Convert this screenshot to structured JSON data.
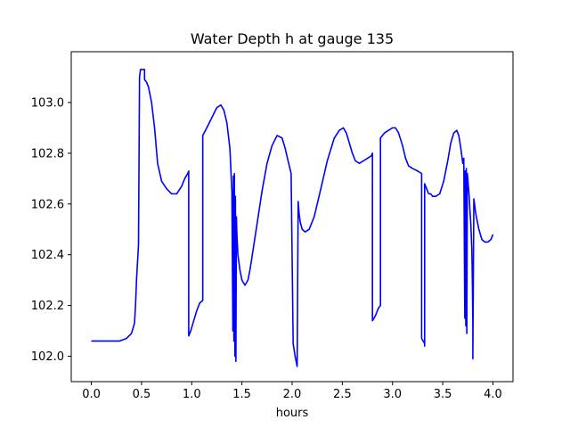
{
  "chart_data": {
    "type": "line",
    "title": "Water Depth h at gauge 135",
    "xlabel": "hours",
    "ylabel": "",
    "xlim": [
      -0.2,
      4.2
    ],
    "ylim": [
      101.9,
      103.2
    ],
    "xticks": [
      0.0,
      0.5,
      1.0,
      1.5,
      2.0,
      2.5,
      3.0,
      3.5,
      4.0
    ],
    "xtick_labels": [
      "0.0",
      "0.5",
      "1.0",
      "1.5",
      "2.0",
      "2.5",
      "3.0",
      "3.5",
      "4.0"
    ],
    "yticks": [
      102.0,
      102.2,
      102.4,
      102.6,
      102.8,
      103.0
    ],
    "ytick_labels": [
      "102.0",
      "102.2",
      "102.4",
      "102.6",
      "102.8",
      "103.0"
    ],
    "grid": false,
    "legend": "none",
    "series": [
      {
        "color": "#0000ff",
        "x": [
          0.0,
          0.1,
          0.2,
          0.28,
          0.35,
          0.4,
          0.43,
          0.44,
          0.45,
          0.47,
          0.48,
          0.49,
          0.49,
          0.5,
          0.51,
          0.53,
          0.53,
          0.55,
          0.57,
          0.6,
          0.63,
          0.66,
          0.7,
          0.75,
          0.8,
          0.85,
          0.9,
          0.93,
          0.96,
          0.97,
          0.97,
          0.99,
          1.02,
          1.05,
          1.08,
          1.11,
          1.11,
          1.15,
          1.2,
          1.25,
          1.29,
          1.32,
          1.35,
          1.38,
          1.4,
          1.41,
          1.415,
          1.42,
          1.425,
          1.43,
          1.435,
          1.44,
          1.445,
          1.45,
          1.46,
          1.48,
          1.5,
          1.53,
          1.56,
          1.58,
          1.6,
          1.65,
          1.7,
          1.75,
          1.8,
          1.85,
          1.9,
          1.93,
          1.96,
          1.99,
          2.01,
          2.01,
          2.03,
          2.05,
          2.06,
          2.07,
          2.08,
          2.1,
          2.13,
          2.17,
          2.22,
          2.28,
          2.35,
          2.42,
          2.47,
          2.51,
          2.54,
          2.57,
          2.6,
          2.63,
          2.67,
          2.71,
          2.75,
          2.79,
          2.8,
          2.8,
          2.83,
          2.86,
          2.88,
          2.88,
          2.92,
          2.96,
          3.0,
          3.03,
          3.06,
          3.1,
          3.13,
          3.16,
          3.2,
          3.25,
          3.29,
          3.29,
          3.32,
          3.32,
          3.32,
          3.34,
          3.36,
          3.38,
          3.4,
          3.43,
          3.47,
          3.51,
          3.55,
          3.58,
          3.61,
          3.64,
          3.66,
          3.68,
          3.7,
          3.71,
          3.72,
          3.725,
          3.73,
          3.735,
          3.74,
          3.745,
          3.75,
          3.755,
          3.76,
          3.765,
          3.77,
          3.78,
          3.79,
          3.795,
          3.8,
          3.8,
          3.81,
          3.83,
          3.86,
          3.89,
          3.92,
          3.95,
          3.98,
          4.0
        ],
        "y": [
          102.06,
          102.06,
          102.06,
          102.06,
          102.07,
          102.09,
          102.13,
          102.2,
          102.3,
          102.44,
          103.1,
          103.13,
          103.13,
          103.13,
          103.13,
          103.13,
          103.09,
          103.08,
          103.06,
          103.0,
          102.9,
          102.76,
          102.69,
          102.66,
          102.64,
          102.64,
          102.67,
          102.7,
          102.72,
          102.73,
          102.08,
          102.1,
          102.14,
          102.18,
          102.21,
          102.22,
          102.87,
          102.9,
          102.94,
          102.98,
          102.99,
          102.97,
          102.92,
          102.82,
          102.65,
          102.1,
          102.71,
          102.06,
          102.72,
          102.0,
          102.63,
          101.98,
          102.55,
          102.48,
          102.4,
          102.34,
          102.3,
          102.28,
          102.3,
          102.34,
          102.39,
          102.52,
          102.65,
          102.76,
          102.83,
          102.87,
          102.86,
          102.82,
          102.77,
          102.72,
          102.06,
          102.05,
          102.0,
          101.96,
          102.61,
          102.56,
          102.53,
          102.5,
          102.49,
          102.5,
          102.55,
          102.65,
          102.77,
          102.86,
          102.89,
          102.9,
          102.88,
          102.84,
          102.8,
          102.77,
          102.76,
          102.77,
          102.78,
          102.79,
          102.8,
          102.14,
          102.16,
          102.19,
          102.2,
          102.86,
          102.88,
          102.89,
          102.9,
          102.9,
          102.88,
          102.83,
          102.78,
          102.75,
          102.74,
          102.73,
          102.72,
          102.07,
          102.05,
          102.04,
          102.68,
          102.66,
          102.64,
          102.64,
          102.63,
          102.63,
          102.64,
          102.69,
          102.77,
          102.84,
          102.88,
          102.89,
          102.87,
          102.82,
          102.76,
          102.78,
          102.15,
          102.73,
          102.12,
          102.74,
          102.09,
          102.72,
          102.7,
          102.67,
          102.65,
          102.62,
          102.58,
          102.52,
          102.42,
          102.3,
          102.13,
          101.99,
          102.62,
          102.56,
          102.5,
          102.46,
          102.45,
          102.45,
          102.46,
          102.48
        ]
      }
    ]
  }
}
